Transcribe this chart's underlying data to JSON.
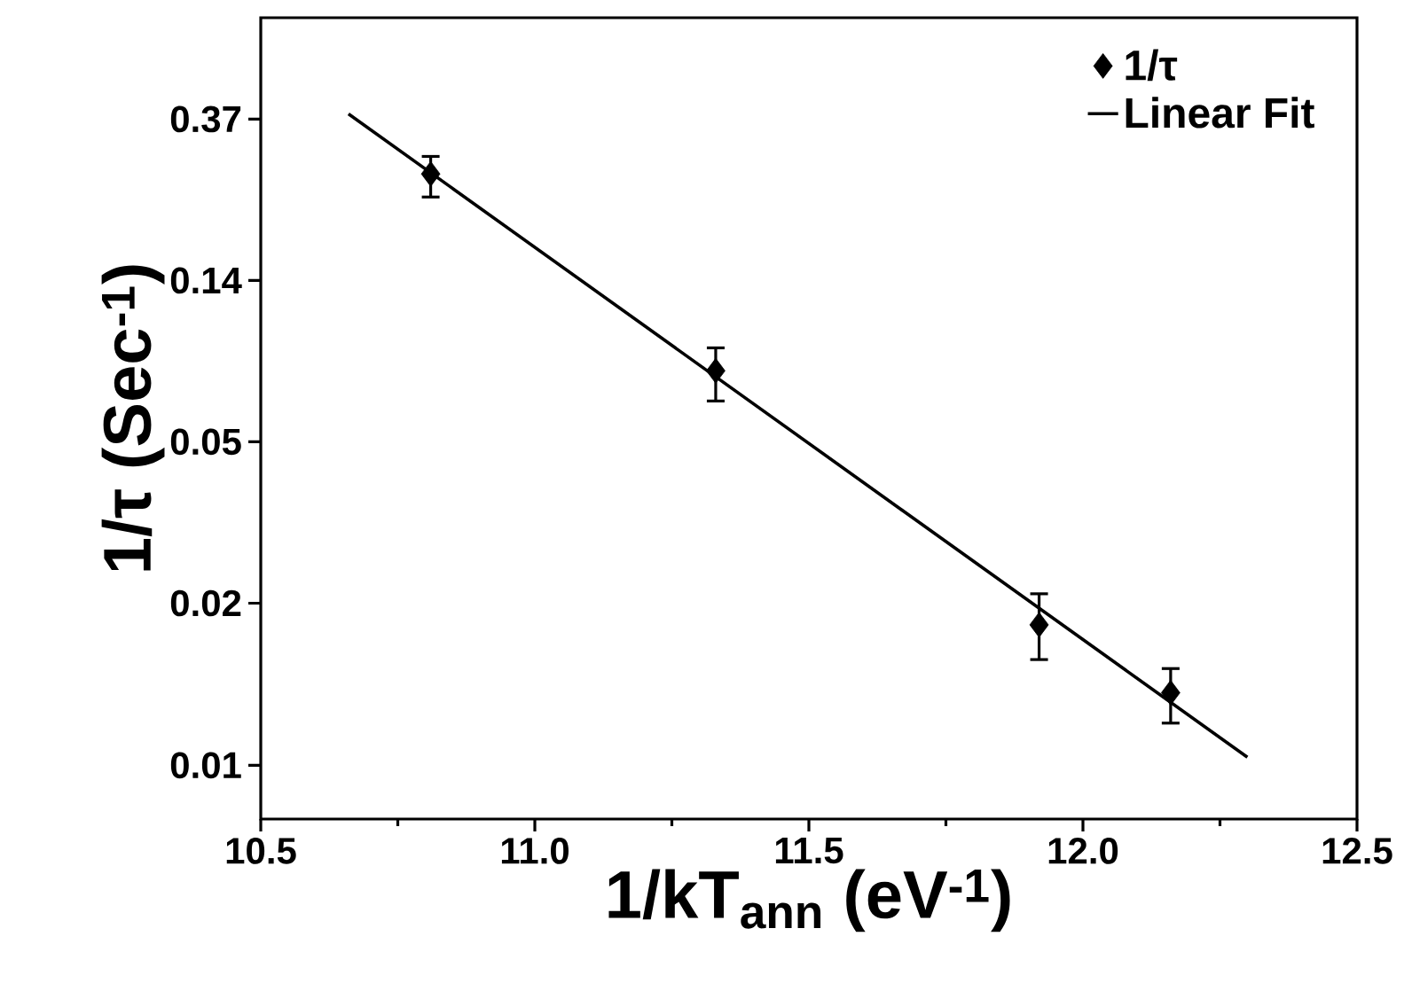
{
  "chart_data": {
    "type": "scatter",
    "xlabel": "1/kT$_{ann}$ (eV$^{-1}$)",
    "ylabel": "1/τ (Sec$^{-1}$)",
    "series": [
      {
        "name": "1/τ",
        "color": "#000000",
        "marker": "diamond",
        "x": [
          10.81,
          11.33,
          11.92,
          12.16
        ],
        "values": [
          0.262,
          0.0773,
          0.016,
          0.0105
        ],
        "errors": [
          [
            0.227,
            0.292
          ],
          [
            0.0641,
            0.0891
          ],
          [
            0.0129,
            0.0194
          ],
          [
            0.0087,
            0.0122
          ]
        ]
      },
      {
        "name": "Linear Fit",
        "type": "line",
        "color": "#000000",
        "line_style": "solid",
        "x": [
          10.66,
          12.3
        ],
        "values": [
          0.38,
          0.00704
        ]
      }
    ],
    "xlim": [
      10.5,
      12.5
    ],
    "xticks": [
      10.5,
      {
        "value": 11.0,
        "label": "11.0"
      },
      11.5,
      {
        "value": 12.0,
        "label": "12.0"
      },
      12.5
    ],
    "ylim": [
      0.0048,
      0.69
    ],
    "yticks": [
      {
        "value": 0.3679,
        "label": "0.37"
      },
      {
        "value": 0.1353,
        "label": "0.14"
      },
      {
        "value": 0.0498,
        "label": "0.05"
      },
      {
        "value": 0.0183,
        "label": "0.02"
      },
      {
        "value": 0.0067,
        "label": "0.01"
      }
    ],
    "log": "y",
    "grid": false,
    "legend": "top right"
  }
}
